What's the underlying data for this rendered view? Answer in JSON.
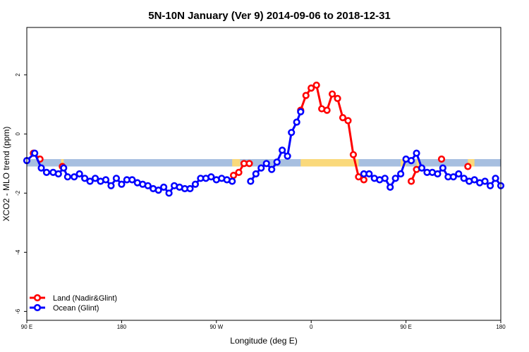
{
  "chart_data": {
    "type": "line",
    "title": "5N-10N January (Ver 9)   2014-09-06 to 2018-12-31",
    "xlabel": "Longitude (deg E)",
    "ylabel": "XCO2 - MLO trend (ppm)",
    "xlim": [
      90,
      450
    ],
    "ylim": [
      -6.3,
      3.6
    ],
    "x_ticks": [
      {
        "value": 90,
        "label": "90 E"
      },
      {
        "value": 162,
        "label": "180"
      },
      {
        "value": 234,
        "label": "90 W"
      },
      {
        "value": 306,
        "label": "0"
      },
      {
        "value": 378,
        "label": "90 E"
      },
      {
        "value": 450,
        "label": "180"
      }
    ],
    "y_ticks": [
      {
        "value": 2,
        "label": "2"
      },
      {
        "value": 0,
        "label": "0"
      },
      {
        "value": -2,
        "label": "-2"
      },
      {
        "value": -4,
        "label": "-4"
      },
      {
        "value": -6,
        "label": "-6"
      }
    ],
    "colors": {
      "land": "#ff0000",
      "ocean": "#0000ff",
      "sea_band": "#a7bfe0",
      "land_band": "#fad97b"
    },
    "band": {
      "y_top": -0.85,
      "y_bottom": -1.1
    },
    "land_spans": [
      [
        116,
        118
      ],
      [
        246,
        252
      ],
      [
        298,
        342
      ],
      [
        374,
        378
      ],
      [
        386,
        388
      ],
      [
        425,
        430
      ]
    ],
    "legend": {
      "position": "bottom-left",
      "entries": [
        {
          "name": "Land (Nadir&Glint)",
          "color": "#ff0000"
        },
        {
          "name": "Ocean (Glint)",
          "color": "#0000ff"
        }
      ]
    },
    "series": [
      {
        "name": "Land (Nadir&Glint)",
        "color": "#ff0000",
        "segments": [
          [
            [
              95,
              -0.65
            ],
            [
              100,
              -0.85
            ]
          ],
          [
            [
              117,
              -1.1
            ]
          ],
          [
            [
              247,
              -1.4
            ],
            [
              251,
              -1.3
            ],
            [
              255,
              -1.0
            ],
            [
              259,
              -1.0
            ]
          ],
          [
            [
              298,
              0.8
            ],
            [
              302,
              1.3
            ],
            [
              306,
              1.55
            ],
            [
              310,
              1.65
            ],
            [
              314,
              0.85
            ],
            [
              318,
              0.8
            ],
            [
              322,
              1.35
            ],
            [
              326,
              1.2
            ],
            [
              330,
              0.55
            ],
            [
              334,
              0.45
            ],
            [
              338,
              -0.7
            ],
            [
              342,
              -1.45
            ],
            [
              346,
              -1.55
            ]
          ],
          [
            [
              382,
              -1.6
            ],
            [
              386,
              -1.2
            ]
          ],
          [
            [
              405,
              -0.85
            ]
          ],
          [
            [
              425,
              -1.1
            ]
          ]
        ]
      },
      {
        "name": "Ocean (Glint)",
        "color": "#0000ff",
        "segments": [
          [
            [
              90,
              -0.9
            ],
            [
              96,
              -0.65
            ],
            [
              101,
              -1.15
            ],
            [
              105,
              -1.3
            ],
            [
              110,
              -1.3
            ],
            [
              114,
              -1.35
            ],
            [
              118,
              -1.15
            ],
            [
              121,
              -1.45
            ],
            [
              126,
              -1.45
            ],
            [
              130,
              -1.35
            ],
            [
              134,
              -1.5
            ],
            [
              138,
              -1.6
            ],
            [
              142,
              -1.5
            ],
            [
              146,
              -1.6
            ],
            [
              150,
              -1.55
            ],
            [
              154,
              -1.75
            ],
            [
              158,
              -1.5
            ],
            [
              162,
              -1.7
            ],
            [
              166,
              -1.55
            ],
            [
              170,
              -1.55
            ],
            [
              174,
              -1.65
            ],
            [
              178,
              -1.7
            ],
            [
              182,
              -1.75
            ],
            [
              186,
              -1.85
            ],
            [
              190,
              -1.9
            ],
            [
              194,
              -1.8
            ],
            [
              198,
              -2.0
            ],
            [
              202,
              -1.75
            ],
            [
              206,
              -1.8
            ],
            [
              210,
              -1.85
            ],
            [
              214,
              -1.85
            ],
            [
              218,
              -1.7
            ],
            [
              222,
              -1.5
            ],
            [
              226,
              -1.5
            ],
            [
              230,
              -1.45
            ],
            [
              234,
              -1.55
            ],
            [
              238,
              -1.5
            ],
            [
              242,
              -1.55
            ],
            [
              246,
              -1.6
            ]
          ],
          [
            [
              260,
              -1.6
            ],
            [
              264,
              -1.35
            ],
            [
              268,
              -1.15
            ],
            [
              272,
              -1.0
            ],
            [
              276,
              -1.2
            ],
            [
              280,
              -0.95
            ],
            [
              284,
              -0.55
            ],
            [
              288,
              -0.75
            ],
            [
              291,
              0.05
            ],
            [
              295,
              0.4
            ],
            [
              298,
              0.75
            ]
          ],
          [
            [
              346,
              -1.35
            ],
            [
              350,
              -1.35
            ],
            [
              354,
              -1.5
            ],
            [
              358,
              -1.55
            ],
            [
              362,
              -1.5
            ],
            [
              366,
              -1.8
            ],
            [
              370,
              -1.5
            ],
            [
              374,
              -1.35
            ],
            [
              378,
              -0.85
            ],
            [
              382,
              -0.9
            ],
            [
              386,
              -0.65
            ],
            [
              390,
              -1.15
            ],
            [
              394,
              -1.3
            ],
            [
              398,
              -1.3
            ],
            [
              402,
              -1.35
            ],
            [
              406,
              -1.15
            ],
            [
              410,
              -1.45
            ],
            [
              414,
              -1.45
            ],
            [
              418,
              -1.35
            ],
            [
              422,
              -1.5
            ],
            [
              426,
              -1.6
            ],
            [
              430,
              -1.55
            ],
            [
              434,
              -1.65
            ],
            [
              438,
              -1.6
            ],
            [
              442,
              -1.75
            ],
            [
              446,
              -1.5
            ],
            [
              450,
              -1.75
            ]
          ]
        ]
      }
    ]
  }
}
